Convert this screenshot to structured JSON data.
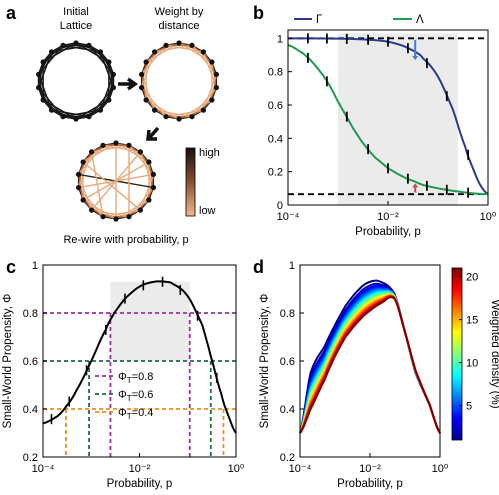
{
  "panels": {
    "a": {
      "label": "a",
      "initial_lattice": [
        "Initial",
        "Lattice"
      ],
      "weight_by_distance": [
        "Weight by",
        "distance"
      ],
      "rewire": "Re-wire with probability, p",
      "colorbar_high": "high",
      "colorbar_low": "low",
      "colors": {
        "black": "#1a1a1a",
        "copper_light": "#e8a97a",
        "copper_mid": "#b87348",
        "copper_dark": "#3a2418"
      }
    },
    "b": {
      "label": "b"
    },
    "c": {
      "label": "c"
    },
    "d": {
      "label": "d",
      "colorbar_label": "Weighted density (%)",
      "colorbar_ticks": [
        "20",
        "15",
        "10",
        "5"
      ],
      "colorbar_range": [
        1,
        21
      ]
    }
  },
  "chart_data": [
    {
      "panel": "b",
      "type": "line",
      "xscale": "log",
      "xlim": [
        0.0001,
        1
      ],
      "ylim": [
        0,
        1.05
      ],
      "xticks": [
        {
          "v": 0.0001,
          "label": "10⁻⁴"
        },
        {
          "v": 0.01,
          "label": "10⁻²"
        },
        {
          "v": 1,
          "label": "10⁰"
        }
      ],
      "yticks": [
        {
          "v": 0,
          "label": "0"
        },
        {
          "v": 0.2,
          "label": "0.2"
        },
        {
          "v": 0.4,
          "label": "0.4"
        },
        {
          "v": 0.6,
          "label": "0.6"
        },
        {
          "v": 0.8,
          "label": "0.8"
        },
        {
          "v": 1,
          "label": "1"
        }
      ],
      "xlabel": "Probability, p",
      "ylabel": "",
      "legend": [
        {
          "name": "Γ",
          "color": "#2b3a8f"
        },
        {
          "name": "Λ",
          "color": "#1f9a52"
        }
      ],
      "shaded_x": [
        0.001,
        0.25
      ],
      "shaded_y": [
        0,
        1.03
      ],
      "hlines": [
        1.0,
        0.065
      ],
      "arrows": [
        {
          "x": 0.035,
          "y_from": 0.99,
          "y_to": 0.87,
          "color": "#3b7fd6"
        },
        {
          "x": 0.035,
          "y_from": 0.075,
          "y_to": 0.13,
          "color": "#d64545"
        }
      ],
      "series": [
        {
          "name": "Γ",
          "color": "#2b3a8f",
          "x": [
            0.0001,
            0.0002,
            0.0005,
            0.001,
            0.002,
            0.005,
            0.01,
            0.02,
            0.035,
            0.05,
            0.1,
            0.2,
            0.35,
            0.5,
            0.7,
            1
          ],
          "y": [
            1.0,
            1.0,
            0.999,
            0.998,
            0.996,
            0.99,
            0.98,
            0.955,
            0.92,
            0.88,
            0.77,
            0.57,
            0.35,
            0.22,
            0.12,
            0.065
          ]
        },
        {
          "name": "Λ",
          "color": "#1f9a52",
          "x": [
            0.0001,
            0.0002,
            0.0003,
            0.0005,
            0.0007,
            0.001,
            0.0015,
            0.002,
            0.003,
            0.005,
            0.007,
            0.01,
            0.02,
            0.035,
            0.05,
            0.1,
            0.2,
            0.5,
            1
          ],
          "y": [
            0.96,
            0.91,
            0.86,
            0.78,
            0.71,
            0.62,
            0.53,
            0.46,
            0.38,
            0.3,
            0.26,
            0.22,
            0.17,
            0.14,
            0.12,
            0.1,
            0.085,
            0.07,
            0.065
          ]
        }
      ]
    },
    {
      "panel": "c",
      "type": "line",
      "xscale": "log",
      "xlim": [
        0.0001,
        1
      ],
      "ylim": [
        0.2,
        1
      ],
      "xticks": [
        {
          "v": 0.0001,
          "label": "10⁻⁴"
        },
        {
          "v": 0.01,
          "label": "10⁻²"
        },
        {
          "v": 1,
          "label": "10⁰"
        }
      ],
      "yticks": [
        {
          "v": 0.2,
          "label": "0.2"
        },
        {
          "v": 0.4,
          "label": "0.4"
        },
        {
          "v": 0.6,
          "label": "0.6"
        },
        {
          "v": 0.8,
          "label": "0.8"
        },
        {
          "v": 1,
          "label": "1"
        }
      ],
      "xlabel": "Probability, p",
      "ylabel": "Small-World Propensity, Φ",
      "shaded_x": [
        0.0025,
        0.11
      ],
      "shaded_y": [
        0.6,
        0.93
      ],
      "series": [
        {
          "name": "Φ",
          "color": "#000000",
          "x": [
            0.0001,
            0.0002,
            0.0003,
            0.0005,
            0.001,
            0.002,
            0.003,
            0.005,
            0.01,
            0.02,
            0.035,
            0.05,
            0.1,
            0.2,
            0.3,
            0.5,
            0.7,
            1
          ],
          "y": [
            0.34,
            0.37,
            0.41,
            0.48,
            0.6,
            0.73,
            0.8,
            0.86,
            0.91,
            0.93,
            0.93,
            0.92,
            0.87,
            0.75,
            0.62,
            0.46,
            0.37,
            0.3
          ]
        }
      ],
      "thresholds": [
        {
          "label": "Φ_T=0.8",
          "y": 0.8,
          "color": "#9b2fa3",
          "x_lo": 0.0025,
          "x_hi": 0.11
        },
        {
          "label": "Φ_T=0.6",
          "y": 0.6,
          "color": "#1e6b47",
          "x_lo": 0.0009,
          "x_hi": 0.3
        },
        {
          "label": "Φ_T=0.4",
          "y": 0.4,
          "color": "#f08c1a",
          "x_lo": 0.0003,
          "x_hi": 0.55
        }
      ]
    },
    {
      "panel": "d",
      "type": "line",
      "xscale": "log",
      "xlim": [
        0.0001,
        1
      ],
      "ylim": [
        0.2,
        1
      ],
      "xticks": [
        {
          "v": 0.0001,
          "label": "10⁻⁴"
        },
        {
          "v": 0.01,
          "label": "10⁻²"
        },
        {
          "v": 1,
          "label": "10⁰"
        }
      ],
      "yticks": [
        {
          "v": 0.2,
          "label": "0.2"
        },
        {
          "v": 0.4,
          "label": "0.4"
        },
        {
          "v": 0.6,
          "label": "0.6"
        },
        {
          "v": 0.8,
          "label": "0.8"
        },
        {
          "v": 1,
          "label": "1"
        }
      ],
      "xlabel": "Probability, p",
      "ylabel": "Small-World Propensity, Φ",
      "x": [
        0.0001,
        0.0002,
        0.0005,
        0.001,
        0.002,
        0.005,
        0.01,
        0.02,
        0.05,
        0.1,
        0.2,
        0.5,
        1
      ],
      "series_density_range": [
        1,
        21
      ],
      "series_count": 20,
      "envelope_low_density": [
        0.3,
        0.55,
        0.66,
        0.75,
        0.83,
        0.9,
        0.93,
        0.93,
        0.88,
        0.72,
        0.55,
        0.42,
        0.3
      ],
      "envelope_high_density": [
        0.3,
        0.4,
        0.52,
        0.62,
        0.7,
        0.77,
        0.81,
        0.84,
        0.86,
        0.72,
        0.56,
        0.42,
        0.3
      ]
    }
  ]
}
